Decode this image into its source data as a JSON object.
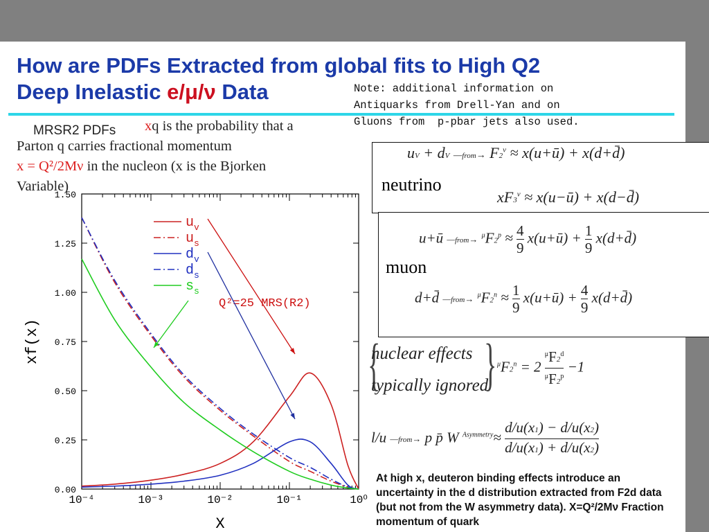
{
  "slide": {
    "title_line1": "How are PDFs Extracted from global fits to High Q2",
    "title_line2_a": "Deep Inelastic ",
    "title_line2_b": "e/μ/ν",
    "title_line2_c": " Data",
    "note": "Note: additional information on\nAntiquarks from Drell-Yan and on\nGluons from  p-pbar jets also used.",
    "mrsr_label": "MRSR2 PDFs",
    "desc_xq": "x",
    "desc_1": "q is the probability that a",
    "desc_2": "Parton q carries  fractional   momentum",
    "desc_3_red": "x = Q²/2Mν",
    "desc_3": "   in the nucleon (x is the Bjorken",
    "desc_4": "Variable)",
    "neutrino_label": "neutrino",
    "muon_label": "muon",
    "nuclear_1": "nuclear effects",
    "nuclear_2": "typically ignored",
    "bottom_text": "At high x, deuteron binding effects introduce an uncertainty in the d distribution extracted from F2d data (but not from the W asymmetry data).  X=Q²/2Mν  Fraction momentum of quark",
    "eq_from": "from"
  },
  "chart_data": {
    "type": "line",
    "xscale": "log",
    "xlim": [
      0.0001,
      1
    ],
    "ylim": [
      0,
      1.5
    ],
    "xlabel": "X",
    "ylabel": "xf(x)",
    "x_ticks": [
      "10⁻⁴",
      "10⁻³",
      "10⁻²",
      "10⁻¹",
      "10⁰"
    ],
    "y_ticks": [
      "0.00",
      "0.25",
      "0.50",
      "0.75",
      "1.00",
      "1.25",
      "1.50"
    ],
    "annotation": "Q²=25 MRS(R2)",
    "x": [
      0.0001,
      0.0003,
      0.001,
      0.003,
      0.01,
      0.03,
      0.1,
      0.2,
      0.4,
      0.7,
      1.0
    ],
    "series": [
      {
        "name": "u_v",
        "color": "#cc2020",
        "dash": "solid",
        "values": [
          0.015,
          0.025,
          0.045,
          0.075,
          0.13,
          0.24,
          0.47,
          0.59,
          0.43,
          0.12,
          0.0
        ]
      },
      {
        "name": "u_s",
        "color": "#cc2020",
        "dash": "dashdot",
        "values": [
          1.38,
          1.05,
          0.78,
          0.57,
          0.4,
          0.27,
          0.14,
          0.09,
          0.04,
          0.01,
          0.0
        ]
      },
      {
        "name": "d_v",
        "color": "#2030c0",
        "dash": "solid",
        "values": [
          0.01,
          0.015,
          0.025,
          0.04,
          0.07,
          0.13,
          0.24,
          0.24,
          0.13,
          0.02,
          0.0
        ]
      },
      {
        "name": "d_s",
        "color": "#2030c0",
        "dash": "dashdot",
        "values": [
          1.38,
          1.06,
          0.79,
          0.58,
          0.41,
          0.28,
          0.16,
          0.11,
          0.05,
          0.01,
          0.0
        ]
      },
      {
        "name": "s_s",
        "color": "#20cc20",
        "dash": "solid",
        "values": [
          1.17,
          0.86,
          0.62,
          0.44,
          0.3,
          0.19,
          0.09,
          0.05,
          0.02,
          0.005,
          0.0
        ]
      }
    ]
  }
}
